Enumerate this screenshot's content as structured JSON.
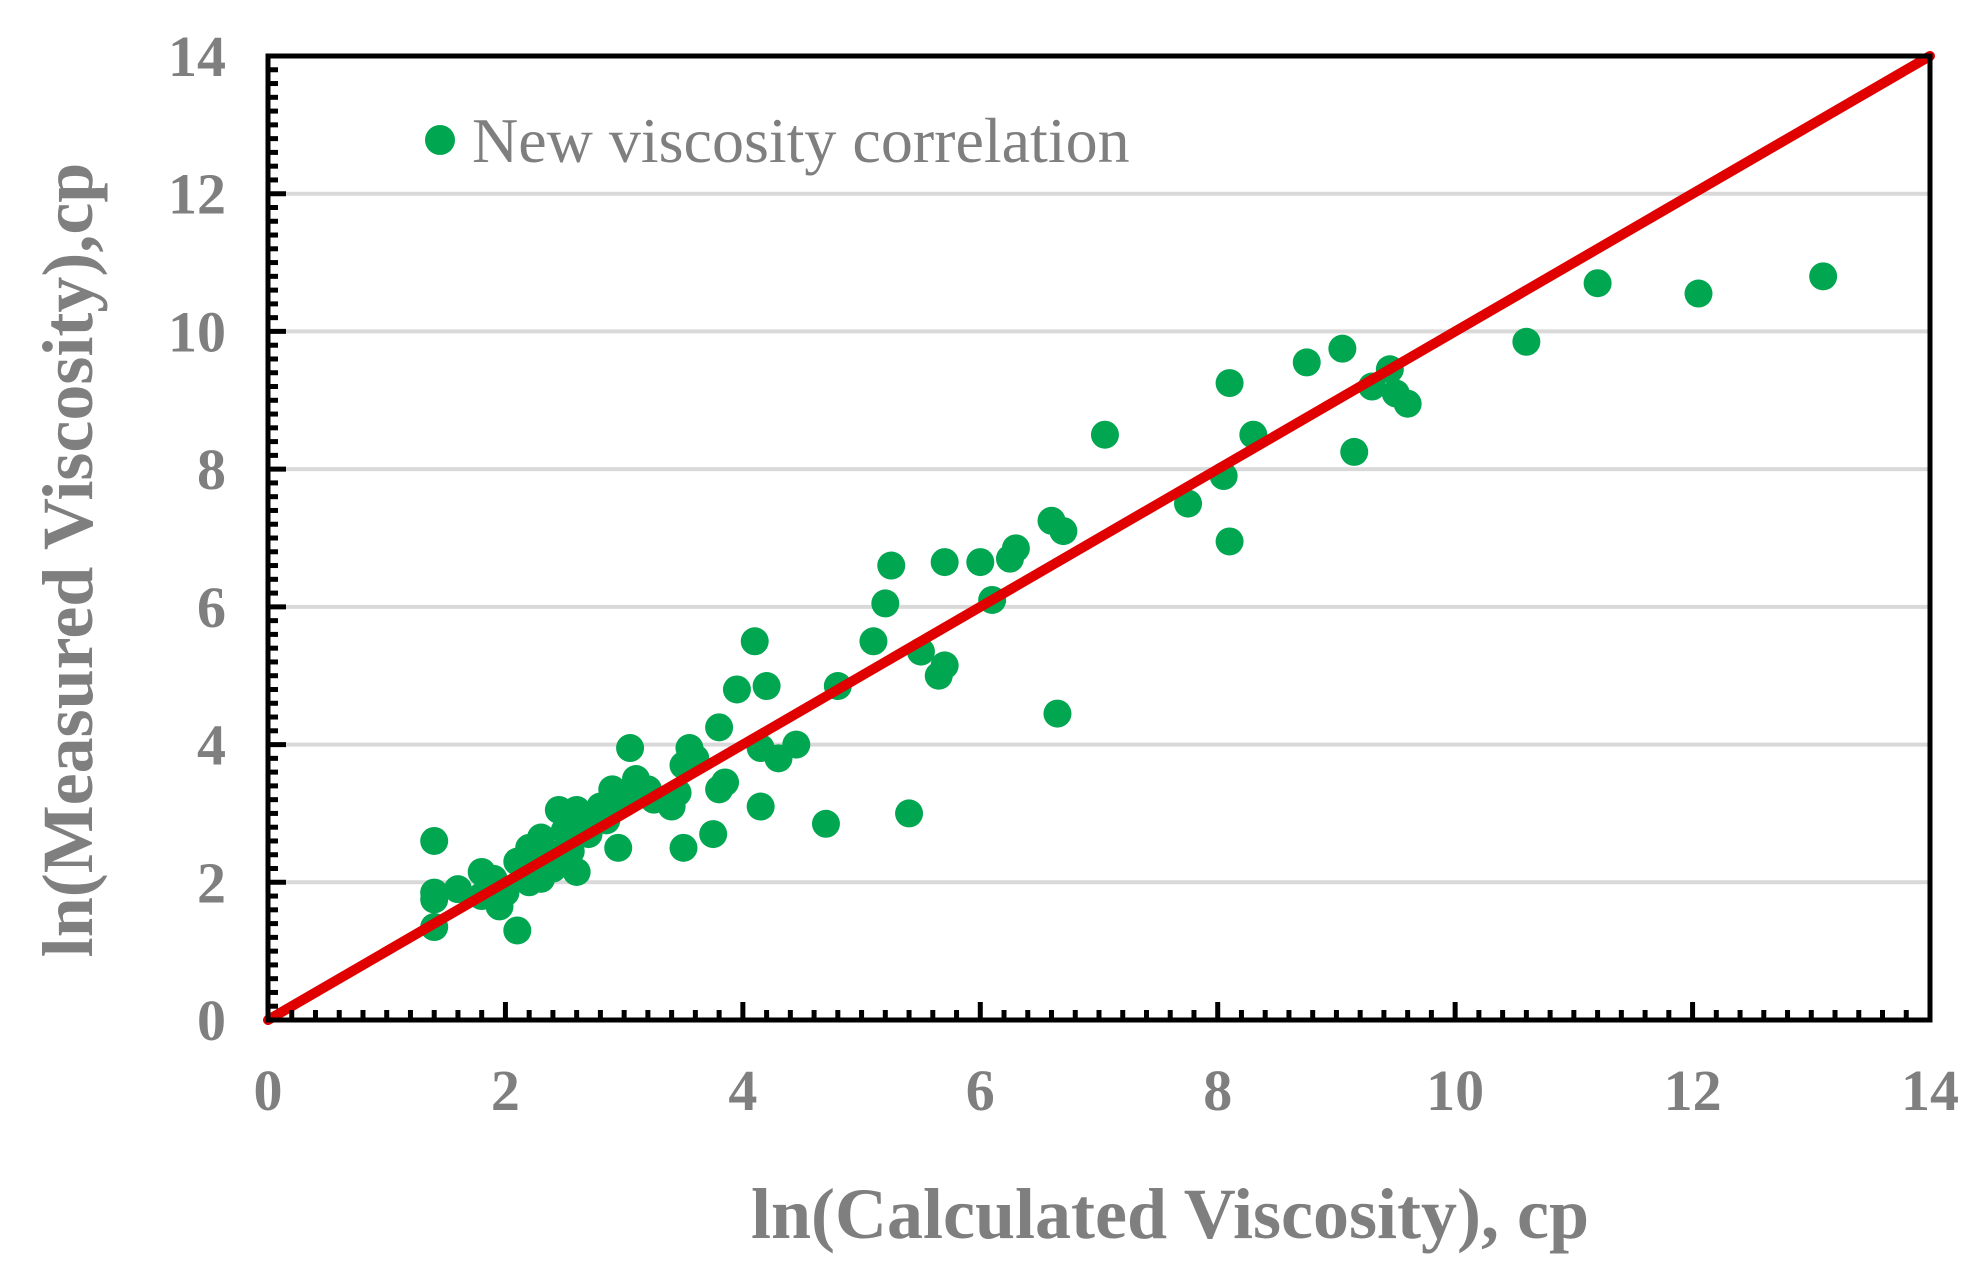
{
  "chart_data": {
    "type": "scatter",
    "title": "",
    "xlabel": "ln(Calculated Viscosity), cp",
    "ylabel": "ln(Measured Viscosity),cp",
    "xlim": [
      0,
      14
    ],
    "ylim": [
      0,
      14
    ],
    "x_ticks": [
      "0",
      "2",
      "4",
      "6",
      "8",
      "10",
      "12",
      "14"
    ],
    "y_ticks": [
      "0",
      "2",
      "4",
      "6",
      "8",
      "10",
      "12",
      "14"
    ],
    "grid": "horizontal",
    "legend": {
      "position": "top-left",
      "entries": [
        "New viscosity correlation"
      ]
    },
    "series": [
      {
        "name": "New viscosity correlation",
        "color": "#00a650",
        "marker": "circle",
        "points": [
          [
            1.4,
            2.6
          ],
          [
            1.4,
            1.85
          ],
          [
            1.4,
            1.75
          ],
          [
            1.4,
            1.35
          ],
          [
            1.6,
            1.9
          ],
          [
            1.8,
            2.15
          ],
          [
            1.8,
            1.8
          ],
          [
            1.9,
            2.05
          ],
          [
            1.95,
            1.65
          ],
          [
            2.0,
            1.85
          ],
          [
            2.1,
            2.3
          ],
          [
            2.1,
            1.3
          ],
          [
            2.2,
            2.5
          ],
          [
            2.2,
            2.0
          ],
          [
            2.3,
            2.65
          ],
          [
            2.3,
            2.05
          ],
          [
            2.4,
            2.4
          ],
          [
            2.4,
            2.2
          ],
          [
            2.45,
            3.05
          ],
          [
            2.5,
            2.75
          ],
          [
            2.55,
            2.45
          ],
          [
            2.6,
            3.05
          ],
          [
            2.6,
            2.15
          ],
          [
            2.7,
            2.95
          ],
          [
            2.7,
            2.7
          ],
          [
            2.8,
            3.1
          ],
          [
            2.85,
            2.9
          ],
          [
            2.9,
            3.35
          ],
          [
            2.95,
            2.5
          ],
          [
            3.0,
            3.2
          ],
          [
            3.05,
            3.95
          ],
          [
            3.1,
            3.5
          ],
          [
            3.2,
            3.35
          ],
          [
            3.25,
            3.2
          ],
          [
            3.4,
            3.1
          ],
          [
            3.45,
            3.3
          ],
          [
            3.5,
            3.7
          ],
          [
            3.5,
            2.5
          ],
          [
            3.55,
            3.95
          ],
          [
            3.6,
            3.8
          ],
          [
            3.75,
            2.7
          ],
          [
            3.8,
            3.35
          ],
          [
            3.8,
            4.25
          ],
          [
            3.85,
            3.45
          ],
          [
            3.95,
            4.8
          ],
          [
            4.1,
            5.5
          ],
          [
            4.15,
            3.95
          ],
          [
            4.15,
            3.1
          ],
          [
            4.2,
            4.85
          ],
          [
            4.3,
            3.8
          ],
          [
            4.45,
            4.0
          ],
          [
            4.7,
            2.85
          ],
          [
            4.8,
            4.85
          ],
          [
            5.1,
            5.5
          ],
          [
            5.2,
            6.05
          ],
          [
            5.25,
            6.6
          ],
          [
            5.4,
            3.0
          ],
          [
            5.5,
            5.35
          ],
          [
            5.65,
            5.0
          ],
          [
            5.7,
            6.65
          ],
          [
            5.7,
            5.15
          ],
          [
            6.0,
            6.65
          ],
          [
            6.1,
            6.1
          ],
          [
            6.25,
            6.7
          ],
          [
            6.3,
            6.85
          ],
          [
            6.6,
            7.25
          ],
          [
            6.65,
            4.45
          ],
          [
            6.7,
            7.1
          ],
          [
            7.05,
            8.5
          ],
          [
            7.75,
            7.5
          ],
          [
            8.05,
            7.9
          ],
          [
            8.1,
            6.95
          ],
          [
            8.1,
            9.25
          ],
          [
            8.3,
            8.5
          ],
          [
            8.75,
            9.55
          ],
          [
            9.05,
            9.75
          ],
          [
            9.15,
            8.25
          ],
          [
            9.3,
            9.2
          ],
          [
            9.45,
            9.45
          ],
          [
            9.5,
            9.1
          ],
          [
            9.6,
            8.95
          ],
          [
            10.6,
            9.85
          ],
          [
            11.2,
            10.7
          ],
          [
            12.05,
            10.55
          ],
          [
            13.1,
            10.8
          ]
        ]
      },
      {
        "name": "y = x reference line",
        "color": "#e00000",
        "marker": "none",
        "points": [
          [
            0,
            0
          ],
          [
            14,
            14
          ]
        ]
      }
    ]
  }
}
